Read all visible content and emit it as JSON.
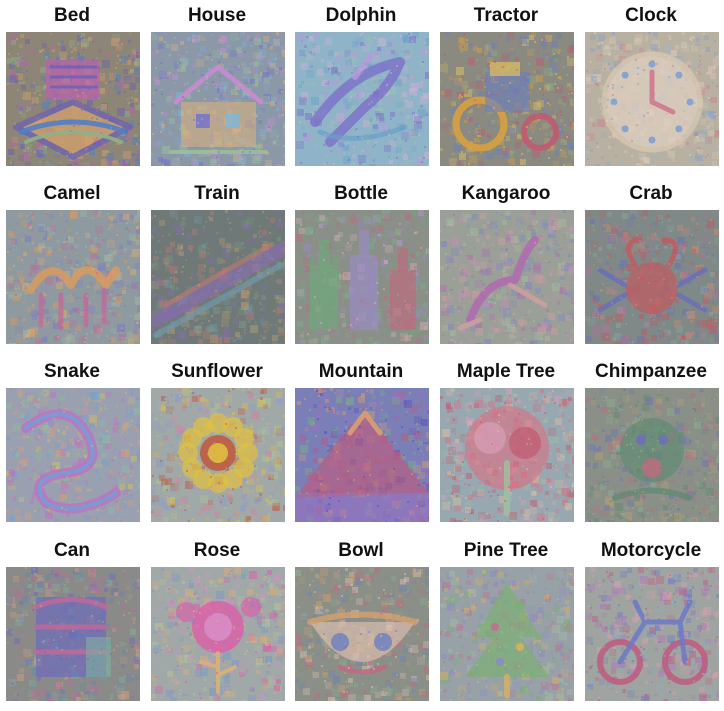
{
  "panels": [
    {
      "label": "Bed",
      "palette": [
        "#8d8576",
        "#6a5fb8",
        "#d9a36a",
        "#4f7fc4",
        "#c25bb8",
        "#8fb08a"
      ],
      "motif": "bed"
    },
    {
      "label": "House",
      "palette": [
        "#8a98a8",
        "#c98bd0",
        "#7fb7d8",
        "#e0b27a",
        "#6f6fcf",
        "#9bc39a"
      ],
      "motif": "house"
    },
    {
      "label": "Dolphin",
      "palette": [
        "#8fb4c8",
        "#7b6cc8",
        "#b89ad8",
        "#6aa0c8",
        "#d8b0d8",
        "#9cc0b0"
      ],
      "motif": "dolphin"
    },
    {
      "label": "Tractor",
      "palette": [
        "#8a8a80",
        "#d8a040",
        "#c05a70",
        "#6a7fc0",
        "#e0c060",
        "#8fb080"
      ],
      "motif": "tractor"
    },
    {
      "label": "Clock",
      "palette": [
        "#b8b0a0",
        "#d8c8b0",
        "#7fa0d0",
        "#d07890",
        "#e0d0c0",
        "#a0b8c0"
      ],
      "motif": "clock"
    },
    {
      "label": "Camel",
      "palette": [
        "#8f9aa0",
        "#d89a60",
        "#7a7ac8",
        "#c06a98",
        "#e0b070",
        "#9cb8a8"
      ],
      "motif": "camel"
    },
    {
      "label": "Train",
      "palette": [
        "#6f7a78",
        "#8a6ab8",
        "#c07a70",
        "#6f98a8",
        "#b8a070",
        "#7a9a80"
      ],
      "motif": "train"
    },
    {
      "label": "Bottle",
      "palette": [
        "#8a8f88",
        "#6fa87a",
        "#c06a80",
        "#9a8ac8",
        "#d8b0b8",
        "#7fb090"
      ],
      "motif": "bottle"
    },
    {
      "label": "Kangaroo",
      "palette": [
        "#9aa098",
        "#b06ab0",
        "#7a88c8",
        "#d0a0a0",
        "#a8c0a0",
        "#c890b0"
      ],
      "motif": "kangaroo"
    },
    {
      "label": "Crab",
      "palette": [
        "#7f8a88",
        "#c05a60",
        "#6a6fb8",
        "#d08a70",
        "#8aa8a0",
        "#b87098"
      ],
      "motif": "crab"
    },
    {
      "label": "Snake",
      "palette": [
        "#9aa0b0",
        "#c070c0",
        "#6fa0d8",
        "#e0a070",
        "#8ac0a0",
        "#d0c060"
      ],
      "motif": "snake"
    },
    {
      "label": "Sunflower",
      "palette": [
        "#a0a8a8",
        "#e0c040",
        "#c05a40",
        "#8a9ad0",
        "#b0c890",
        "#d880a0"
      ],
      "motif": "sunflower"
    },
    {
      "label": "Mountain",
      "palette": [
        "#7a7fb8",
        "#c0587a",
        "#4f4fb8",
        "#d8a070",
        "#7fb080",
        "#a070c0"
      ],
      "motif": "mountain"
    },
    {
      "label": "Maple Tree",
      "palette": [
        "#98a8b0",
        "#e06a80",
        "#d8a0b8",
        "#c05a70",
        "#a0c0a0",
        "#e0c0a0"
      ],
      "motif": "maple"
    },
    {
      "label": "Chimpanzee",
      "palette": [
        "#8a9088",
        "#5a8a70",
        "#c06a80",
        "#6f6fb8",
        "#b8a070",
        "#8ab090"
      ],
      "motif": "chimp"
    },
    {
      "label": "Can",
      "palette": [
        "#8a8a88",
        "#6a6ac0",
        "#c06a98",
        "#7fb0a0",
        "#d0a080",
        "#5a8ab0"
      ],
      "motif": "can"
    },
    {
      "label": "Rose",
      "palette": [
        "#a0a8a8",
        "#e05aa8",
        "#d890c8",
        "#7a98c8",
        "#b8c898",
        "#e0b070"
      ],
      "motif": "rose"
    },
    {
      "label": "Bowl",
      "palette": [
        "#8a9088",
        "#c06a80",
        "#d0a070",
        "#6a80c0",
        "#e0c0b0",
        "#8ab090"
      ],
      "motif": "bowl"
    },
    {
      "label": "Pine Tree",
      "palette": [
        "#98a0a8",
        "#7ab070",
        "#c07090",
        "#d8b060",
        "#8a8ac8",
        "#a8c0a0"
      ],
      "motif": "pine"
    },
    {
      "label": "Motorcycle",
      "palette": [
        "#a0a4a0",
        "#c05a80",
        "#6a7ac8",
        "#d8a0b0",
        "#8ab0b8",
        "#b070c0"
      ],
      "motif": "moto"
    }
  ]
}
